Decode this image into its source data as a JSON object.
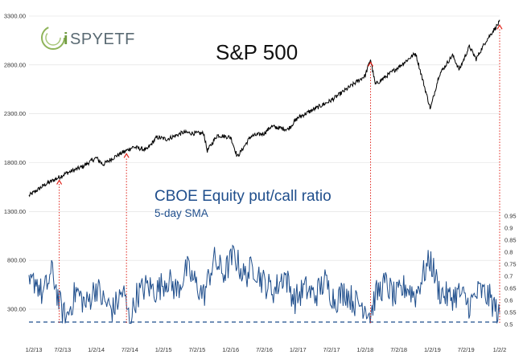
{
  "logo": {
    "prefix": "i",
    "name": "SPYETF"
  },
  "chart_data": [
    {
      "type": "line",
      "title": "S&P 500",
      "xlabel": "",
      "ylabel": "",
      "x_ticks": [
        "1/2/13",
        "7/2/13",
        "1/2/14",
        "7/2/14",
        "1/2/15",
        "7/2/15",
        "1/2/16",
        "7/2/16",
        "1/2/17",
        "7/2/17",
        "1/2/18",
        "7/2/18",
        "1/2/19",
        "7/2/19",
        "1/2/2"
      ],
      "y_ticks": [
        "300.00",
        "800.00",
        "1300.00",
        "1800.00",
        "2300.00",
        "2800.00",
        "3300.00"
      ],
      "ylim": [
        300,
        3300
      ],
      "series": [
        {
          "color": "#000000",
          "x": [
            2013.0,
            2013.25,
            2013.42,
            2013.55,
            2013.8,
            2014.0,
            2014.1,
            2014.3,
            2014.55,
            2014.75,
            2014.9,
            2015.05,
            2015.3,
            2015.45,
            2015.6,
            2015.65,
            2015.8,
            2016.0,
            2016.1,
            2016.3,
            2016.5,
            2016.6,
            2016.85,
            2017.0,
            2017.5,
            2018.0,
            2018.08,
            2018.15,
            2018.5,
            2018.75,
            2018.97,
            2019.1,
            2019.3,
            2019.4,
            2019.55,
            2019.65,
            2019.8,
            2020.0
          ],
          "y": [
            1462,
            1580,
            1640,
            1690,
            1760,
            1850,
            1780,
            1870,
            1960,
            1930,
            2060,
            2040,
            2110,
            2100,
            2100,
            1920,
            2080,
            2060,
            1860,
            2070,
            2100,
            2170,
            2140,
            2260,
            2440,
            2690,
            2860,
            2600,
            2780,
            2920,
            2350,
            2700,
            2900,
            2750,
            2990,
            2860,
            3050,
            3240
          ]
        }
      ]
    },
    {
      "type": "line",
      "title": "CBOE Equity put/call ratio",
      "subtitle": "5-day SMA",
      "y_ticks": [
        "0.5",
        "0.55",
        "0.6",
        "0.65",
        "0.7",
        "0.75",
        "0.8",
        "0.85",
        "0.9",
        "0.95"
      ],
      "ylim": [
        0.5,
        0.95
      ],
      "baseline": 0.51,
      "series": [
        {
          "color": "#1f4e8c",
          "x": [
            2013.0,
            2013.1,
            2013.2,
            2013.35,
            2013.45,
            2013.55,
            2013.7,
            2013.85,
            2014.0,
            2014.1,
            2014.25,
            2014.4,
            2014.5,
            2014.6,
            2014.75,
            2014.9,
            2015.05,
            2015.2,
            2015.35,
            2015.5,
            2015.6,
            2015.75,
            2015.9,
            2016.05,
            2016.2,
            2016.35,
            2016.5,
            2016.65,
            2016.8,
            2016.95,
            2017.1,
            2017.25,
            2017.4,
            2017.55,
            2017.7,
            2017.85,
            2018.0,
            2018.08,
            2018.15,
            2018.3,
            2018.45,
            2018.6,
            2018.75,
            2018.85,
            2018.97,
            2019.1,
            2019.25,
            2019.4,
            2019.55,
            2019.7,
            2019.85,
            2019.95,
            2020.0
          ],
          "y": [
            0.65,
            0.69,
            0.62,
            0.72,
            0.59,
            0.52,
            0.64,
            0.58,
            0.66,
            0.6,
            0.56,
            0.64,
            0.51,
            0.62,
            0.66,
            0.64,
            0.69,
            0.64,
            0.73,
            0.66,
            0.62,
            0.77,
            0.71,
            0.79,
            0.7,
            0.74,
            0.67,
            0.64,
            0.71,
            0.6,
            0.65,
            0.62,
            0.68,
            0.6,
            0.64,
            0.59,
            0.58,
            0.54,
            0.62,
            0.67,
            0.61,
            0.66,
            0.62,
            0.7,
            0.77,
            0.64,
            0.61,
            0.63,
            0.58,
            0.64,
            0.61,
            0.56,
            0.52
          ]
        }
      ]
    }
  ],
  "arrow_dates": [
    2013.45,
    2014.45,
    2018.08,
    2020.0
  ],
  "colors": {
    "sp500": "#000000",
    "putcall": "#1f4e8c",
    "arrows": "#e0241b",
    "baseline": "#1f4e8c",
    "grid": "#dddddd"
  }
}
